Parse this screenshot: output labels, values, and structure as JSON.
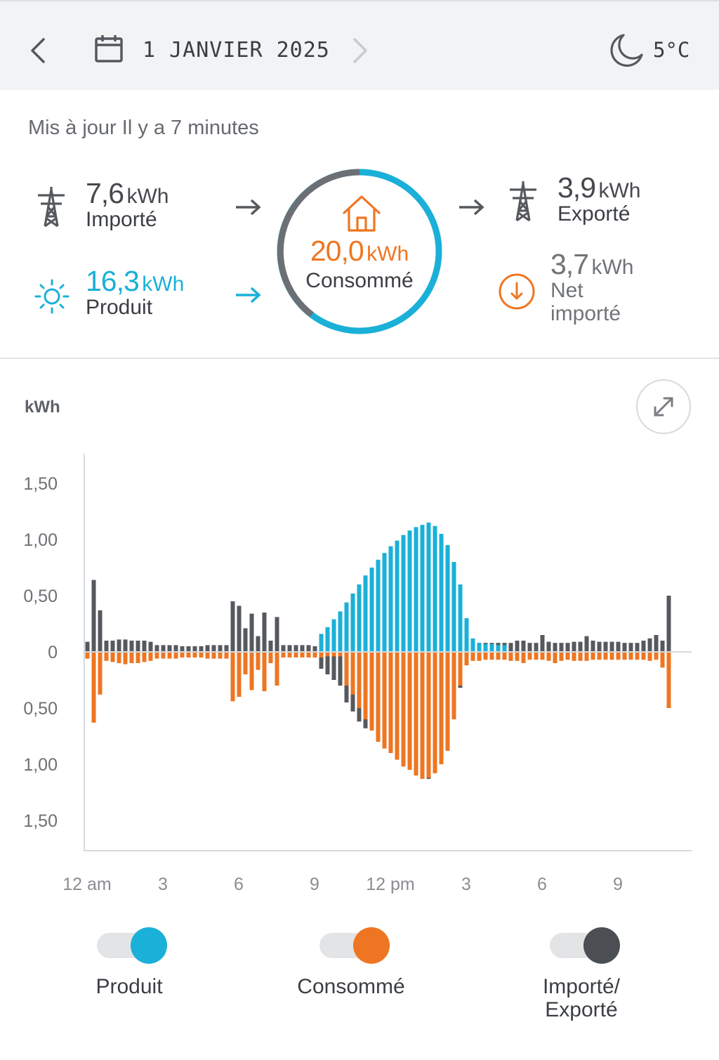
{
  "header": {
    "date": "1 JANVIER 2025",
    "temperature": "5°C",
    "icons": [
      "back-chevron-icon",
      "calendar-icon",
      "forward-chevron-icon",
      "moon-icon"
    ]
  },
  "status": {
    "updated": "Mis à jour Il y a 7 minutes"
  },
  "summary": {
    "imported": {
      "value": "7,6",
      "unit": "kWh",
      "label": "Importé",
      "icon": "power-tower-icon"
    },
    "produced": {
      "value": "16,3",
      "unit": "kWh",
      "label": "Produit",
      "icon": "sun-icon"
    },
    "consumed": {
      "value": "20,0",
      "unit": "kWh",
      "label": "Consommé",
      "icon": "house-icon"
    },
    "exported": {
      "value": "3,9",
      "unit": "kWh",
      "label": "Exporté",
      "icon": "power-tower-icon"
    },
    "net": {
      "value": "3,7",
      "unit": "kWh",
      "label_line1": "Net",
      "label_line2": "importé",
      "icon": "arrow-down-circle-icon"
    }
  },
  "colors": {
    "produced": "#1ab0d8",
    "consumed": "#ee7622",
    "grid": "#55585d"
  },
  "chart_data": {
    "type": "bar",
    "ylabel": "kWh",
    "y_ticks": [
      "1,50",
      "1,00",
      "0,50",
      "0",
      "0,50",
      "1,00",
      "1,50"
    ],
    "ylim": [
      -1.5,
      1.5
    ],
    "x_ticks": [
      "12 am",
      "3",
      "6",
      "9",
      "12 pm",
      "3",
      "6",
      "9"
    ],
    "interval": "15 min",
    "series": [
      {
        "name": "Produit",
        "color": "#1ab0d8",
        "values": [
          0,
          0,
          0,
          0,
          0,
          0,
          0,
          0,
          0,
          0,
          0,
          0,
          0,
          0,
          0,
          0,
          0,
          0,
          0,
          0,
          0,
          0,
          0,
          0,
          0,
          0,
          0,
          0,
          0,
          0,
          0,
          0,
          0,
          0,
          0,
          0,
          0,
          0.16,
          0.22,
          0.29,
          0.36,
          0.44,
          0.52,
          0.6,
          0.68,
          0.75,
          0.82,
          0.88,
          0.94,
          0.99,
          1.04,
          1.08,
          1.11,
          1.13,
          1.15,
          1.12,
          1.05,
          0.95,
          0.8,
          0.6,
          0.3,
          0.12,
          0.08,
          0.07,
          0.07,
          0.06,
          0.06,
          0,
          0,
          0,
          0,
          0,
          0,
          0,
          0,
          0,
          0,
          0,
          0,
          0,
          0,
          0,
          0,
          0,
          0,
          0,
          0,
          0,
          0,
          0,
          0,
          0,
          0,
          0,
          0,
          0
        ]
      },
      {
        "name": "Consommé",
        "color": "#ee7622",
        "values": [
          -0.06,
          -0.63,
          -0.38,
          -0.08,
          -0.09,
          -0.1,
          -0.11,
          -0.1,
          -0.1,
          -0.09,
          -0.08,
          -0.06,
          -0.06,
          -0.06,
          -0.06,
          -0.05,
          -0.05,
          -0.05,
          -0.05,
          -0.06,
          -0.06,
          -0.06,
          -0.06,
          -0.44,
          -0.4,
          -0.2,
          -0.34,
          -0.16,
          -0.35,
          -0.1,
          -0.3,
          -0.05,
          -0.05,
          -0.05,
          -0.05,
          -0.05,
          -0.05,
          -0.05,
          -0.04,
          -0.04,
          -0.04,
          -0.3,
          -0.38,
          -0.5,
          -0.6,
          -0.7,
          -0.8,
          -0.86,
          -0.9,
          -0.96,
          -1.02,
          -1.05,
          -1.1,
          -1.13,
          -1.12,
          -1.08,
          -1.0,
          -0.88,
          -0.6,
          -0.3,
          -0.12,
          -0.08,
          -0.08,
          -0.07,
          -0.07,
          -0.07,
          -0.07,
          -0.08,
          -0.08,
          -0.1,
          -0.07,
          -0.07,
          -0.07,
          -0.08,
          -0.1,
          -0.08,
          -0.07,
          -0.08,
          -0.08,
          -0.08,
          -0.07,
          -0.07,
          -0.07,
          -0.07,
          -0.07,
          -0.07,
          -0.07,
          -0.07,
          -0.07,
          -0.08,
          -0.07,
          -0.14,
          -0.5,
          0
        ]
      },
      {
        "name": "Importé/Exporté",
        "color": "#55585d",
        "values": [
          0.09,
          0.64,
          0.37,
          0.1,
          0.1,
          0.11,
          0.11,
          0.1,
          0.1,
          0.1,
          0.09,
          0.06,
          0.06,
          0.06,
          0.06,
          0.05,
          0.05,
          0.05,
          0.05,
          0.06,
          0.06,
          0.06,
          0.06,
          0.45,
          0.41,
          0.21,
          0.34,
          0.14,
          0.35,
          0.1,
          0.31,
          0.06,
          0.06,
          0.06,
          0.06,
          0.06,
          0.05,
          -0.15,
          -0.2,
          -0.25,
          -0.3,
          -0.45,
          -0.53,
          -0.62,
          -0.68,
          -0.7,
          -0.72,
          -0.78,
          -0.8,
          -0.85,
          -0.9,
          -0.95,
          -1.02,
          -1.1,
          -1.13,
          -1.02,
          -0.98,
          -0.7,
          -0.4,
          -0.32,
          -0.08,
          0.08,
          0.08,
          0.08,
          0.08,
          0.08,
          0.08,
          0.08,
          0.1,
          0.1,
          0.08,
          0.08,
          0.15,
          0.09,
          0.08,
          0.08,
          0.08,
          0.09,
          0.09,
          0.14,
          0.1,
          0.09,
          0.09,
          0.09,
          0.09,
          0.08,
          0.08,
          0.08,
          0.1,
          0.12,
          0.15,
          0.1,
          0.5,
          0
        ]
      }
    ],
    "grid": false,
    "legend": "bottom"
  },
  "legend": {
    "produced": "Produit",
    "consumed": "Consommé",
    "grid_line1": "Importé/",
    "grid_line2": "Exporté"
  }
}
